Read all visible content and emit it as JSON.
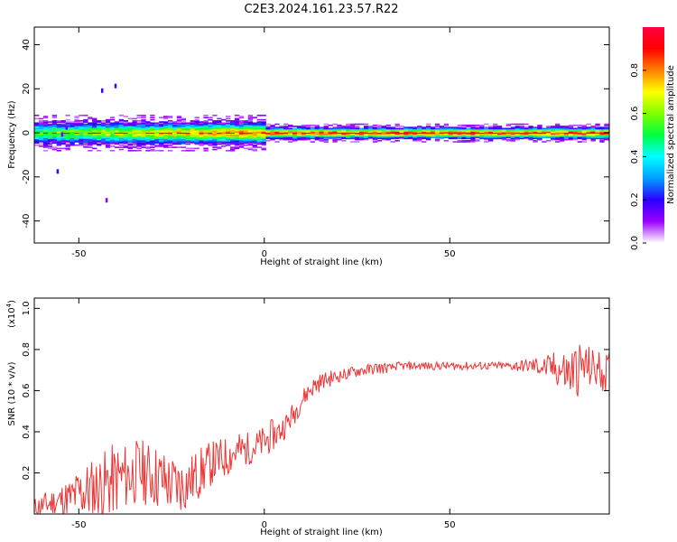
{
  "title": "C2E3.2024.161.23.57.R22",
  "chart_data": [
    {
      "type": "heatmap",
      "xlabel": "Height of straight line (km)",
      "ylabel": "Frequency (Hz)",
      "xlim": [
        -62,
        93
      ],
      "ylim": [
        -50,
        48
      ],
      "xticks": [
        -50,
        0,
        50
      ],
      "xtick_labels": [
        "-50",
        "0",
        "50"
      ],
      "yticks": [
        40,
        20,
        0,
        -20,
        -40
      ],
      "ytick_labels": [
        "40",
        "20",
        "0",
        "-20",
        "-40"
      ],
      "description_values": {
        "band_center_hz": 0,
        "band_halfwidth_hz_low_heights": 4,
        "band_halfwidth_hz_high_heights": 2
      },
      "colorbar": {
        "label": "Normalized spectral amplitude",
        "range": [
          0,
          1
        ],
        "ticks": [
          0.0,
          0.2,
          0.4,
          0.6,
          0.8
        ],
        "tick_labels": [
          "0.0",
          "0.2",
          "0.4",
          "0.6",
          "0.8"
        ],
        "colors": [
          "#ffffff",
          "#9a00ff",
          "#2a00ff",
          "#00a0ff",
          "#00ffff",
          "#00ff40",
          "#80ff00",
          "#ffff00",
          "#ff8000",
          "#ff0000",
          "#ff0040"
        ]
      }
    },
    {
      "type": "line",
      "xlabel": "Height of straight line (km)",
      "ylabel": "SNR (10 * v/v)",
      "scale_label": "(x10",
      "scale_exponent": "4",
      "scale_close": ")",
      "xlim": [
        -62,
        93
      ],
      "ylim": [
        0,
        1.05
      ],
      "xticks": [
        -50,
        0,
        50
      ],
      "xtick_labels": [
        "-50",
        "0",
        "50"
      ],
      "yticks": [
        0.2,
        0.4,
        0.6,
        0.8,
        1.0
      ],
      "ytick_labels": [
        "0.2",
        "0.4",
        "0.6",
        "0.8",
        "1.0"
      ],
      "color": "#ee3333",
      "series": [
        {
          "x": [
            -62,
            -60,
            -58,
            -56,
            -54,
            -52,
            -50,
            -48,
            -46,
            -44,
            -42,
            -40,
            -38,
            -36,
            -34,
            -32,
            -30,
            -28,
            -26,
            -24,
            -22,
            -20,
            -18,
            -16,
            -14,
            -12,
            -10,
            -8,
            -6,
            -4,
            -2,
            0,
            2,
            4,
            6,
            8,
            10,
            12,
            14,
            16,
            18,
            20,
            22,
            24,
            26,
            28,
            30,
            32,
            34,
            36,
            38,
            40,
            42,
            44,
            46,
            48,
            50,
            52,
            54,
            56,
            58,
            60,
            62,
            64,
            66,
            68,
            70,
            72,
            74,
            76,
            78,
            80,
            82,
            84,
            86,
            88,
            90,
            92
          ],
          "y": [
            0.03,
            0.04,
            0.05,
            0.06,
            0.07,
            0.08,
            0.1,
            0.11,
            0.12,
            0.13,
            0.15,
            0.17,
            0.18,
            0.19,
            0.21,
            0.2,
            0.19,
            0.17,
            0.15,
            0.14,
            0.14,
            0.16,
            0.19,
            0.22,
            0.25,
            0.26,
            0.28,
            0.3,
            0.31,
            0.32,
            0.33,
            0.35,
            0.38,
            0.4,
            0.44,
            0.49,
            0.55,
            0.6,
            0.63,
            0.65,
            0.66,
            0.67,
            0.68,
            0.69,
            0.7,
            0.7,
            0.71,
            0.71,
            0.71,
            0.72,
            0.72,
            0.72,
            0.72,
            0.72,
            0.72,
            0.72,
            0.72,
            0.72,
            0.72,
            0.72,
            0.72,
            0.72,
            0.72,
            0.72,
            0.72,
            0.72,
            0.72,
            0.72,
            0.72,
            0.71,
            0.71,
            0.7,
            0.68,
            0.7,
            0.72,
            0.71,
            0.7,
            0.69
          ],
          "noise": [
            0.05,
            0.06,
            0.07,
            0.08,
            0.09,
            0.1,
            0.13,
            0.15,
            0.16,
            0.17,
            0.18,
            0.18,
            0.17,
            0.16,
            0.16,
            0.16,
            0.16,
            0.16,
            0.15,
            0.15,
            0.14,
            0.13,
            0.13,
            0.12,
            0.11,
            0.11,
            0.1,
            0.1,
            0.09,
            0.08,
            0.08,
            0.08,
            0.08,
            0.07,
            0.06,
            0.06,
            0.05,
            0.05,
            0.05,
            0.04,
            0.04,
            0.03,
            0.03,
            0.03,
            0.03,
            0.03,
            0.03,
            0.03,
            0.02,
            0.02,
            0.02,
            0.02,
            0.02,
            0.02,
            0.02,
            0.02,
            0.02,
            0.02,
            0.02,
            0.02,
            0.02,
            0.02,
            0.02,
            0.02,
            0.02,
            0.03,
            0.03,
            0.04,
            0.05,
            0.06,
            0.08,
            0.1,
            0.13,
            0.14,
            0.12,
            0.1,
            0.1,
            0.1
          ]
        }
      ]
    }
  ]
}
